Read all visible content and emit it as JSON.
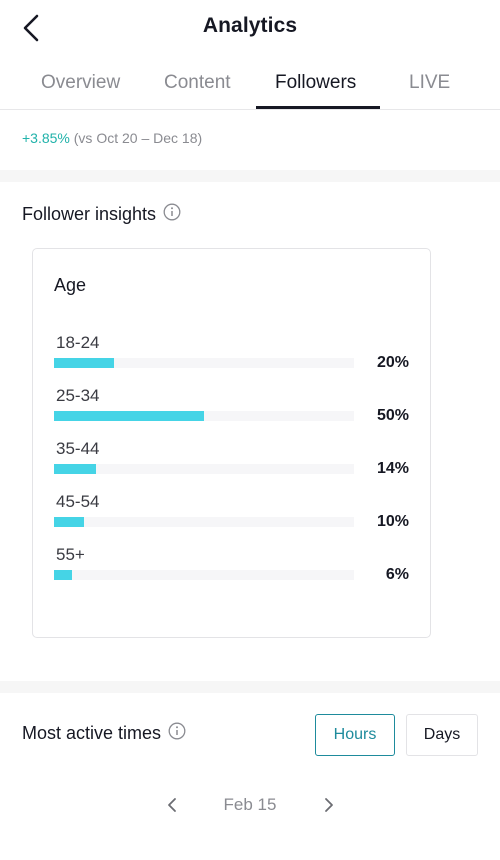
{
  "header": {
    "title": "Analytics",
    "back_icon": "chevron-left-icon"
  },
  "tabs": [
    {
      "label": "Overview",
      "active": false
    },
    {
      "label": "Content",
      "active": false
    },
    {
      "label": "Followers",
      "active": true
    },
    {
      "label": "LIVE",
      "active": false
    }
  ],
  "followers_summary": {
    "change": "+3.85%",
    "comparison": "(vs Oct 20 – Dec 18)"
  },
  "insights": {
    "title": "Follower insights",
    "info_icon": "info-icon",
    "age": {
      "title": "Age",
      "bar_color": "#45d4e6",
      "groups": [
        {
          "label": "18-24",
          "percent_label": "20%",
          "value": 20
        },
        {
          "label": "25-34",
          "percent_label": "50%",
          "value": 50
        },
        {
          "label": "35-44",
          "percent_label": "14%",
          "value": 14
        },
        {
          "label": "45-54",
          "percent_label": "10%",
          "value": 10
        },
        {
          "label": "55+",
          "percent_label": "6%",
          "value": 6
        }
      ]
    }
  },
  "active_times": {
    "title": "Most active times",
    "info_icon": "info-icon",
    "hours_label": "Hours",
    "days_label": "Days",
    "selected": "Hours",
    "accent_color": "#1e8b9c",
    "date": "Feb 15",
    "prev_icon": "chevron-left-icon",
    "next_icon": "chevron-right-icon"
  }
}
